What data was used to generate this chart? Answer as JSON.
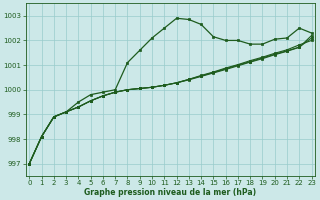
{
  "bg_color": "#cce8e8",
  "grid_color": "#99cccc",
  "line_color": "#1e5c1e",
  "marker_color": "#1e5c1e",
  "xlabel": "Graphe pression niveau de la mer (hPa)",
  "ylim": [
    996.5,
    1003.5
  ],
  "xlim": [
    -0.3,
    23.3
  ],
  "yticks": [
    997,
    998,
    999,
    1000,
    1001,
    1002,
    1003
  ],
  "xticks": [
    0,
    1,
    2,
    3,
    4,
    5,
    6,
    7,
    8,
    9,
    10,
    11,
    12,
    13,
    14,
    15,
    16,
    17,
    18,
    19,
    20,
    21,
    22,
    23
  ],
  "series1": [
    997.0,
    998.1,
    998.9,
    999.1,
    999.5,
    999.8,
    999.9,
    1000.0,
    1001.1,
    1001.6,
    1002.1,
    1002.5,
    1002.9,
    1002.85,
    1002.65,
    1002.15,
    1002.0,
    1002.0,
    1001.85,
    1001.85,
    1002.05,
    1002.1,
    1002.5,
    1002.3
  ],
  "series2": [
    997.0,
    998.1,
    998.9,
    999.1,
    999.3,
    999.55,
    999.75,
    999.9,
    1000.0,
    1000.05,
    1000.1,
    1000.18,
    1000.28,
    1000.42,
    1000.58,
    1000.72,
    1000.88,
    1001.02,
    1001.18,
    1001.32,
    1001.48,
    1001.62,
    1001.82,
    1002.0
  ],
  "series3": [
    997.0,
    998.1,
    998.9,
    999.1,
    999.3,
    999.55,
    999.75,
    999.9,
    1000.0,
    1000.05,
    1000.1,
    1000.18,
    1000.28,
    1000.42,
    1000.56,
    1000.7,
    1000.85,
    1001.0,
    1001.14,
    1001.29,
    1001.44,
    1001.58,
    1001.73,
    1002.1
  ],
  "series4": [
    997.0,
    998.1,
    998.9,
    999.1,
    999.3,
    999.55,
    999.75,
    999.9,
    1000.0,
    1000.05,
    1000.1,
    1000.18,
    1000.28,
    1000.4,
    1000.54,
    1000.68,
    1000.82,
    1000.97,
    1001.12,
    1001.26,
    1001.42,
    1001.56,
    1001.72,
    1002.2
  ]
}
